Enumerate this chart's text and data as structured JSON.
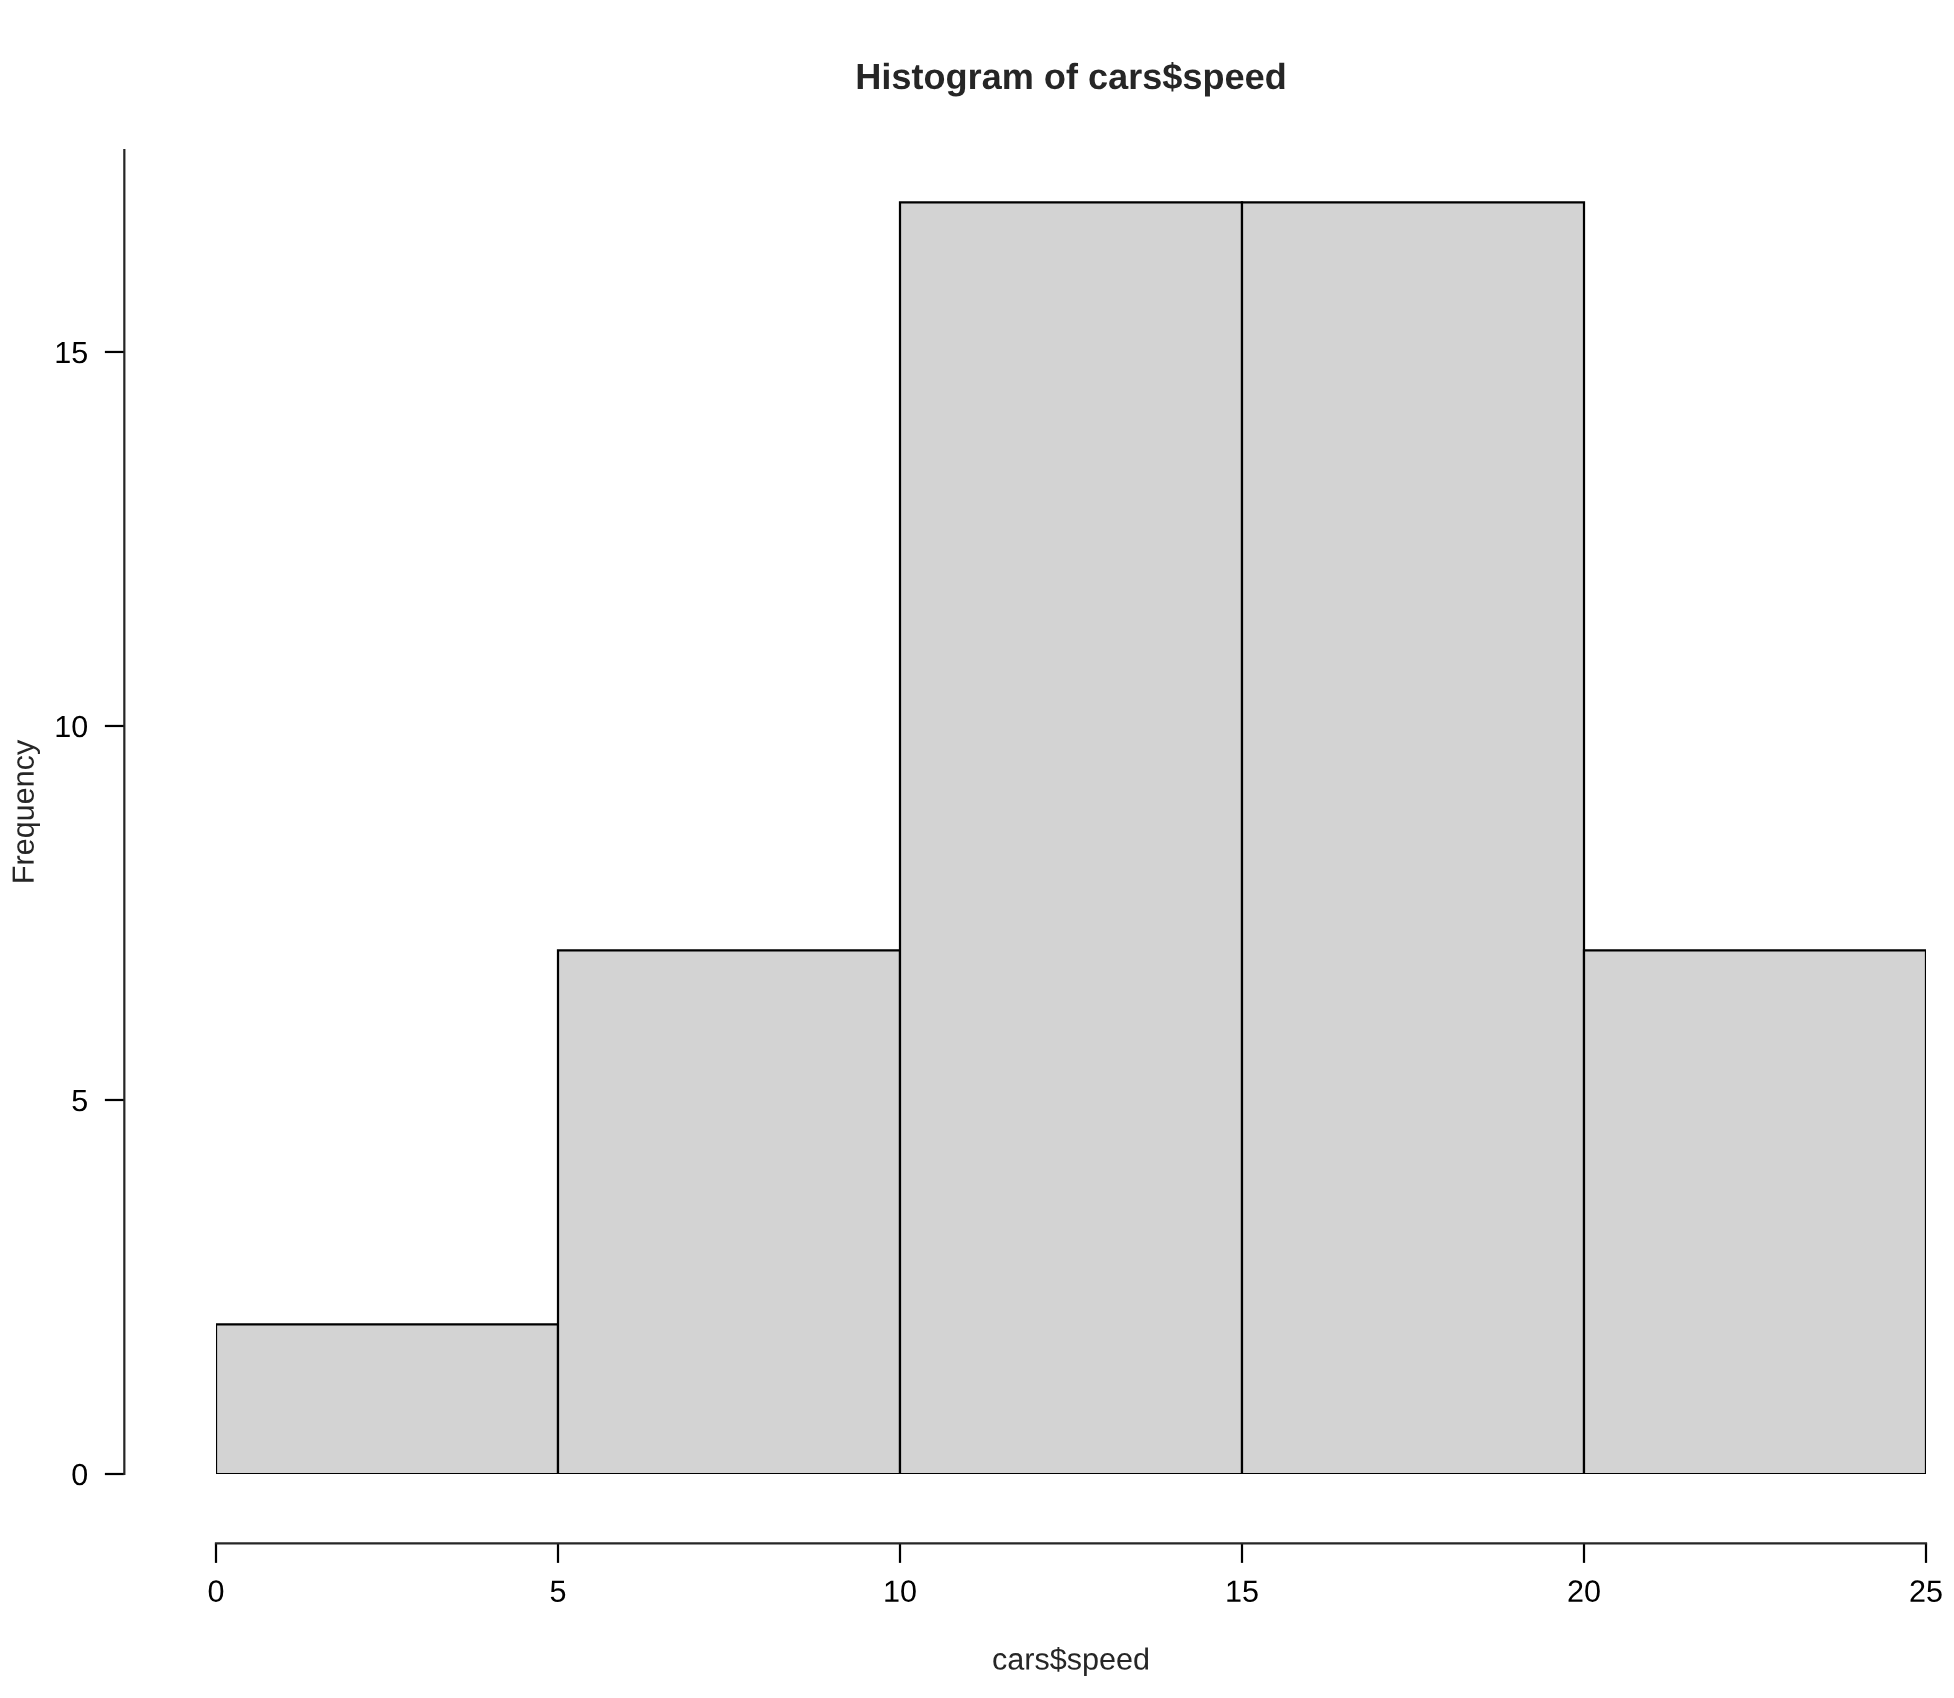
{
  "chart_data": {
    "type": "histogram",
    "title": "Histogram of cars$speed",
    "xlabel": "cars$speed",
    "ylabel": "Frequency",
    "bins": [
      0,
      5,
      10,
      15,
      20,
      25
    ],
    "values": [
      2,
      7,
      17,
      17,
      7
    ],
    "color": "#d3d3d3",
    "xlim": [
      0,
      25
    ],
    "xticks": [
      0,
      5,
      10,
      15,
      20,
      25
    ],
    "ylim": [
      0,
      17.7
    ],
    "yticks": [
      0,
      5,
      10,
      15
    ],
    "grid": false,
    "legend": false
  }
}
